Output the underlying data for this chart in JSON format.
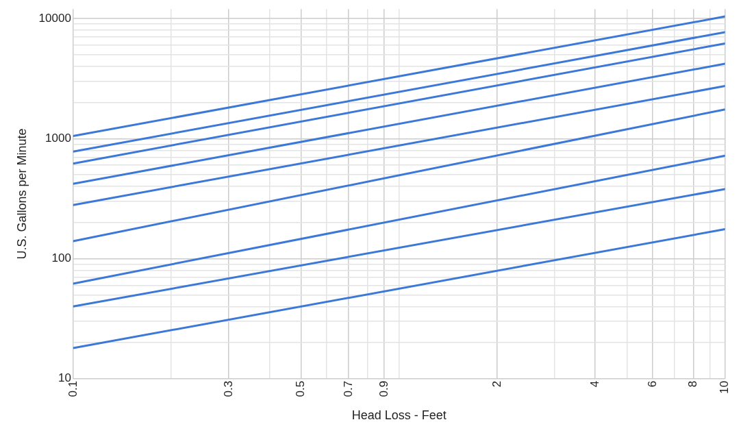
{
  "chart_data": {
    "type": "line",
    "xlabel": "Head Loss - Feet",
    "ylabel": "U.S. Gallons per Minute",
    "log": "xy",
    "grid": true,
    "legend": false,
    "marker": "none",
    "line_style": "solid",
    "x": [
      0.1,
      10
    ],
    "xlim": [
      0.1,
      10
    ],
    "xticks": [
      0.1,
      {
        "value": 0.2,
        "label": null
      },
      0.3,
      {
        "value": 0.4,
        "label": null
      },
      0.5,
      {
        "value": 0.6,
        "label": null
      },
      0.7,
      {
        "value": 0.8,
        "label": null
      },
      0.9,
      {
        "value": 1,
        "label": null
      },
      2,
      {
        "value": 3,
        "label": null
      },
      4,
      {
        "value": 5,
        "label": null
      },
      6,
      {
        "value": 7,
        "label": null
      },
      8,
      {
        "value": 9,
        "label": null
      },
      10
    ],
    "ylim": [
      10,
      12000
    ],
    "yticks": [
      10,
      {
        "value": 20,
        "label": null
      },
      {
        "value": 30,
        "label": null
      },
      {
        "value": 40,
        "label": null
      },
      {
        "value": 50,
        "label": null
      },
      {
        "value": 60,
        "label": null
      },
      {
        "value": 70,
        "label": null
      },
      {
        "value": 80,
        "label": null
      },
      {
        "value": 90,
        "label": null
      },
      100,
      {
        "value": 200,
        "label": null
      },
      {
        "value": 300,
        "label": null
      },
      {
        "value": 400,
        "label": null
      },
      {
        "value": 500,
        "label": null
      },
      {
        "value": 600,
        "label": null
      },
      {
        "value": 700,
        "label": null
      },
      {
        "value": 800,
        "label": null
      },
      {
        "value": 900,
        "label": null
      },
      1000,
      {
        "value": 2000,
        "label": null
      },
      {
        "value": 3000,
        "label": null
      },
      {
        "value": 4000,
        "label": null
      },
      {
        "value": 5000,
        "label": null
      },
      {
        "value": 6000,
        "label": null
      },
      {
        "value": 7000,
        "label": null
      },
      {
        "value": 8000,
        "label": null
      },
      {
        "value": 9000,
        "label": null
      },
      10000
    ],
    "series": [
      {
        "color": "#3c78d8",
        "values": [
          1050,
          10400
        ]
      },
      {
        "color": "#3c78d8",
        "values": [
          780,
          7700
        ]
      },
      {
        "color": "#3c78d8",
        "values": [
          620,
          6200
        ]
      },
      {
        "color": "#3c78d8",
        "values": [
          420,
          4200
        ]
      },
      {
        "color": "#3c78d8",
        "values": [
          280,
          2740
        ]
      },
      {
        "color": "#3c78d8",
        "values": [
          140,
          1750
        ]
      },
      {
        "color": "#3c78d8",
        "values": [
          62,
          720
        ]
      },
      {
        "color": "#3c78d8",
        "values": [
          40,
          380
        ]
      },
      {
        "color": "#3c78d8",
        "values": [
          18,
          176
        ]
      }
    ]
  }
}
